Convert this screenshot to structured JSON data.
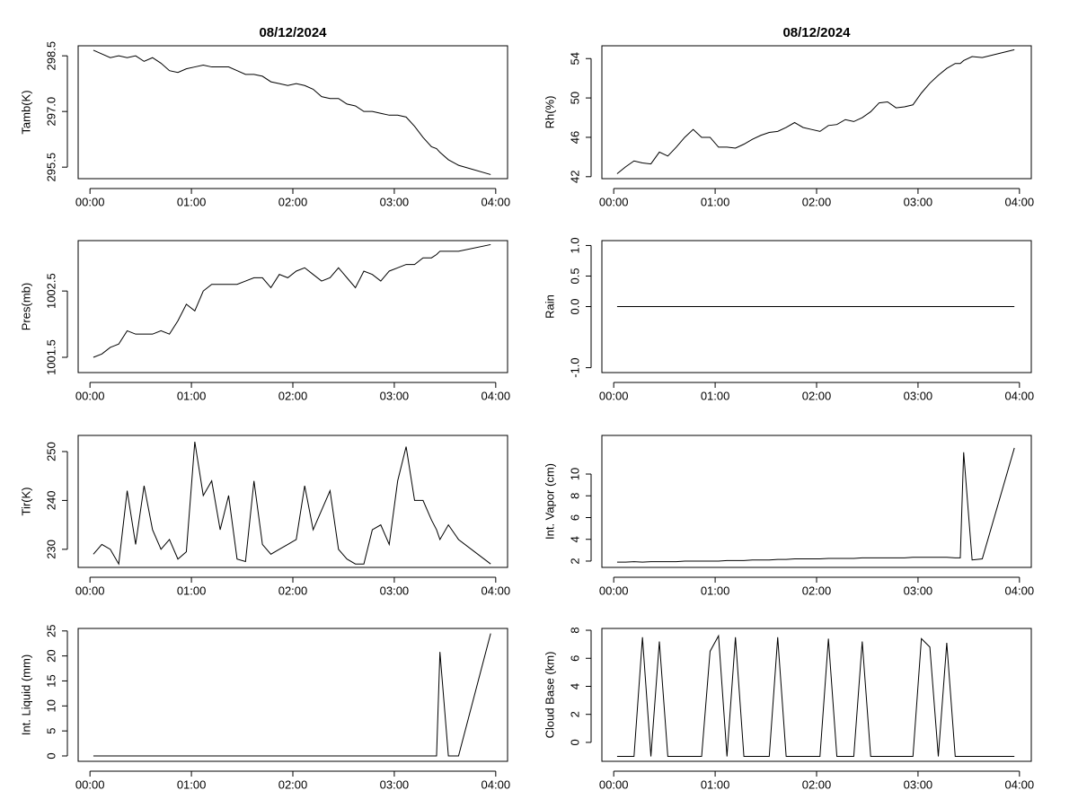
{
  "chart_data": [
    {
      "type": "line",
      "title": "08/12/2024",
      "y_label": "Tamb(K)",
      "color": "#000000",
      "x": [
        2,
        7,
        12,
        17,
        22,
        27,
        32,
        37,
        42,
        47,
        52,
        57,
        62,
        67,
        72,
        77,
        82,
        87,
        92,
        97,
        102,
        107,
        112,
        117,
        122,
        127,
        132,
        137,
        142,
        147,
        152,
        157,
        162,
        167,
        172,
        177,
        182,
        187,
        192,
        197,
        202,
        205,
        207,
        212,
        218,
        237
      ],
      "values": [
        298.65,
        298.55,
        298.45,
        298.5,
        298.45,
        298.5,
        298.35,
        298.45,
        298.3,
        298.1,
        298.05,
        298.15,
        298.2,
        298.25,
        298.2,
        298.2,
        298.2,
        298.1,
        298.0,
        298.0,
        297.95,
        297.8,
        297.75,
        297.7,
        297.75,
        297.7,
        297.6,
        297.4,
        297.35,
        297.35,
        297.2,
        297.15,
        297.0,
        297.0,
        296.95,
        296.9,
        296.9,
        296.85,
        296.6,
        296.3,
        296.05,
        296.0,
        295.9,
        295.7,
        295.55,
        295.3
      ],
      "xlim": [
        -7,
        247
      ],
      "ylim": [
        295.19,
        298.77
      ],
      "xticks": [
        {
          "value": 0,
          "label": "00:00"
        },
        {
          "value": 60,
          "label": "01:00"
        },
        {
          "value": 120,
          "label": "02:00"
        },
        {
          "value": 180,
          "label": "03:00"
        },
        {
          "value": 240,
          "label": "04:00"
        }
      ],
      "yticks": [
        295.5,
        {
          "value": 297,
          "label": "297.0"
        },
        298.5
      ]
    },
    {
      "type": "line",
      "title": "08/12/2024",
      "y_label": "Rh(%)",
      "color": "#000000",
      "x": [
        2,
        7,
        12,
        17,
        22,
        27,
        32,
        37,
        42,
        47,
        52,
        57,
        62,
        67,
        72,
        77,
        82,
        87,
        92,
        97,
        102,
        107,
        112,
        117,
        122,
        127,
        132,
        137,
        142,
        147,
        152,
        157,
        162,
        167,
        172,
        177,
        182,
        187,
        192,
        197,
        202,
        205,
        207,
        212,
        218,
        237
      ],
      "values": [
        42.3,
        43.0,
        43.6,
        43.4,
        43.3,
        44.5,
        44.1,
        45.0,
        46.0,
        46.8,
        46.0,
        46.0,
        45.0,
        45.0,
        44.9,
        45.3,
        45.8,
        46.2,
        46.5,
        46.6,
        47.0,
        47.5,
        47.0,
        46.8,
        46.6,
        47.2,
        47.3,
        47.8,
        47.6,
        48.0,
        48.6,
        49.5,
        49.6,
        49.0,
        49.1,
        49.3,
        50.5,
        51.5,
        52.3,
        53.0,
        53.5,
        53.5,
        53.8,
        54.2,
        54.1,
        54.9
      ],
      "xlim": [
        -7,
        247
      ],
      "ylim": [
        41.8,
        55.3
      ],
      "xticks": [
        {
          "value": 0,
          "label": "00:00"
        },
        {
          "value": 60,
          "label": "01:00"
        },
        {
          "value": 120,
          "label": "02:00"
        },
        {
          "value": 180,
          "label": "03:00"
        },
        {
          "value": 240,
          "label": "04:00"
        }
      ],
      "yticks": [
        42,
        46,
        50,
        54
      ]
    },
    {
      "type": "line",
      "y_label": "Pres(mb)",
      "color": "#000000",
      "x": [
        2,
        7,
        12,
        17,
        22,
        27,
        32,
        37,
        42,
        47,
        52,
        57,
        62,
        67,
        72,
        77,
        82,
        87,
        92,
        97,
        102,
        107,
        112,
        117,
        122,
        127,
        132,
        137,
        142,
        147,
        152,
        157,
        162,
        167,
        172,
        177,
        182,
        187,
        192,
        197,
        202,
        205,
        207,
        212,
        218,
        237
      ],
      "values": [
        1001.5,
        1001.55,
        1001.65,
        1001.7,
        1001.9,
        1001.85,
        1001.85,
        1001.85,
        1001.9,
        1001.85,
        1002.05,
        1002.3,
        1002.2,
        1002.5,
        1002.6,
        1002.6,
        1002.6,
        1002.6,
        1002.65,
        1002.7,
        1002.7,
        1002.55,
        1002.75,
        1002.7,
        1002.8,
        1002.85,
        1002.75,
        1002.65,
        1002.7,
        1002.85,
        1002.7,
        1002.55,
        1002.8,
        1002.75,
        1002.65,
        1002.8,
        1002.85,
        1002.9,
        1002.9,
        1003.0,
        1003.0,
        1003.05,
        1003.1,
        1003.1,
        1003.1,
        1003.2
      ],
      "xlim": [
        -7,
        247
      ],
      "ylim": [
        1001.27,
        1003.26
      ],
      "xticks": [
        {
          "value": 0,
          "label": "00:00"
        },
        {
          "value": 60,
          "label": "01:00"
        },
        {
          "value": 120,
          "label": "02:00"
        },
        {
          "value": 180,
          "label": "03:00"
        },
        {
          "value": 240,
          "label": "04:00"
        }
      ],
      "yticks": [
        1001.5,
        1002.5
      ]
    },
    {
      "type": "line",
      "y_label": "Rain",
      "color": "#000000",
      "x": [
        2,
        7,
        12,
        17,
        22,
        27,
        32,
        37,
        42,
        47,
        52,
        57,
        62,
        67,
        72,
        77,
        82,
        87,
        92,
        97,
        102,
        107,
        112,
        117,
        122,
        127,
        132,
        137,
        142,
        147,
        152,
        157,
        162,
        167,
        172,
        177,
        182,
        187,
        192,
        197,
        202,
        205,
        207,
        212,
        218,
        237
      ],
      "values": [
        0,
        0,
        0,
        0,
        0,
        0,
        0,
        0,
        0,
        0,
        0,
        0,
        0,
        0,
        0,
        0,
        0,
        0,
        0,
        0,
        0,
        0,
        0,
        0,
        0,
        0,
        0,
        0,
        0,
        0,
        0,
        0,
        0,
        0,
        0,
        0,
        0,
        0,
        0,
        0,
        0,
        0,
        0,
        0,
        0,
        0
      ],
      "xlim": [
        -7,
        247
      ],
      "ylim": [
        -1.08,
        1.08
      ],
      "xticks": [
        {
          "value": 0,
          "label": "00:00"
        },
        {
          "value": 60,
          "label": "01:00"
        },
        {
          "value": 120,
          "label": "02:00"
        },
        {
          "value": 180,
          "label": "03:00"
        },
        {
          "value": 240,
          "label": "04:00"
        }
      ],
      "yticks": [
        {
          "value": -1,
          "label": "-1.0"
        },
        {
          "value": 0,
          "label": "0.0"
        },
        0.5,
        {
          "value": 1,
          "label": "1.0"
        }
      ]
    },
    {
      "type": "line",
      "y_label": "Tir(K)",
      "color": "#000000",
      "x": [
        2,
        7,
        12,
        17,
        22,
        27,
        32,
        37,
        42,
        47,
        52,
        57,
        62,
        67,
        72,
        77,
        82,
        87,
        92,
        97,
        102,
        107,
        112,
        117,
        122,
        127,
        132,
        137,
        142,
        147,
        152,
        157,
        162,
        167,
        172,
        177,
        182,
        187,
        192,
        197,
        202,
        205,
        207,
        212,
        218,
        237
      ],
      "values": [
        229,
        231,
        230,
        227,
        242,
        231,
        243,
        234,
        230,
        232,
        228,
        229.5,
        252,
        241,
        244,
        234,
        241,
        228,
        227.5,
        244,
        231,
        229,
        230,
        231,
        232,
        243,
        234,
        238,
        242,
        230,
        228,
        227,
        227,
        234,
        235,
        231,
        244,
        251,
        240,
        240,
        236,
        234,
        232,
        235,
        232,
        227
      ],
      "xlim": [
        -7,
        247
      ],
      "ylim": [
        226.3,
        253.3
      ],
      "xticks": [
        {
          "value": 0,
          "label": "00:00"
        },
        {
          "value": 60,
          "label": "01:00"
        },
        {
          "value": 120,
          "label": "02:00"
        },
        {
          "value": 180,
          "label": "03:00"
        },
        {
          "value": 240,
          "label": "04:00"
        }
      ],
      "yticks": [
        230,
        240,
        250
      ]
    },
    {
      "type": "line",
      "y_label": "Int. Vapor (cm)",
      "color": "#000000",
      "x": [
        2,
        7,
        12,
        17,
        22,
        27,
        32,
        37,
        42,
        47,
        52,
        57,
        62,
        67,
        72,
        77,
        82,
        87,
        92,
        97,
        102,
        107,
        112,
        117,
        122,
        127,
        132,
        137,
        142,
        147,
        152,
        157,
        162,
        167,
        172,
        177,
        182,
        187,
        192,
        197,
        202,
        205,
        207,
        212,
        218,
        237
      ],
      "values": [
        1.9,
        1.9,
        1.95,
        1.9,
        1.95,
        1.95,
        1.95,
        1.95,
        2.0,
        2.0,
        2.0,
        2.0,
        2.0,
        2.05,
        2.05,
        2.05,
        2.1,
        2.1,
        2.1,
        2.15,
        2.15,
        2.2,
        2.2,
        2.2,
        2.2,
        2.25,
        2.25,
        2.25,
        2.25,
        2.3,
        2.3,
        2.3,
        2.3,
        2.3,
        2.3,
        2.35,
        2.35,
        2.35,
        2.35,
        2.35,
        2.3,
        2.3,
        12.0,
        2.1,
        2.2,
        12.4
      ],
      "xlim": [
        -7,
        247
      ],
      "ylim": [
        1.42,
        13.55
      ],
      "xticks": [
        {
          "value": 0,
          "label": "00:00"
        },
        {
          "value": 60,
          "label": "01:00"
        },
        {
          "value": 120,
          "label": "02:00"
        },
        {
          "value": 180,
          "label": "03:00"
        },
        {
          "value": 240,
          "label": "04:00"
        }
      ],
      "yticks": [
        2,
        4,
        6,
        8,
        10
      ]
    },
    {
      "type": "line",
      "y_label": "Int. Liquid (mm)",
      "color": "#000000",
      "x": [
        2,
        7,
        12,
        17,
        22,
        27,
        32,
        37,
        42,
        47,
        52,
        57,
        62,
        67,
        72,
        77,
        82,
        87,
        92,
        97,
        102,
        107,
        112,
        117,
        122,
        127,
        132,
        137,
        142,
        147,
        152,
        157,
        162,
        167,
        172,
        177,
        182,
        187,
        192,
        197,
        202,
        205,
        207,
        212,
        218,
        237
      ],
      "values": [
        0,
        0,
        0,
        0,
        0,
        0,
        0,
        0,
        0,
        0,
        0,
        0,
        0,
        0,
        0,
        0,
        0,
        0,
        0,
        0,
        0,
        0,
        0,
        0,
        0,
        0,
        0,
        0,
        0,
        0,
        0,
        0,
        0,
        0,
        0,
        0,
        0,
        0,
        0,
        0,
        0,
        0,
        20.8,
        0,
        0,
        24.5
      ],
      "xlim": [
        -7,
        247
      ],
      "ylim": [
        -1.08,
        25.5
      ],
      "xticks": [
        {
          "value": 0,
          "label": "00:00"
        },
        {
          "value": 60,
          "label": "01:00"
        },
        {
          "value": 120,
          "label": "02:00"
        },
        {
          "value": 180,
          "label": "03:00"
        },
        {
          "value": 240,
          "label": "04:00"
        }
      ],
      "yticks": [
        0,
        5,
        10,
        15,
        20,
        25
      ]
    },
    {
      "type": "line",
      "y_label": "Cloud Base (km)",
      "color": "#000000",
      "x": [
        2,
        7,
        12,
        17,
        22,
        27,
        32,
        37,
        42,
        47,
        52,
        57,
        62,
        67,
        72,
        77,
        82,
        87,
        92,
        97,
        102,
        107,
        112,
        117,
        122,
        127,
        132,
        137,
        142,
        147,
        152,
        157,
        162,
        167,
        172,
        177,
        182,
        187,
        192,
        197,
        202,
        205,
        207,
        212,
        218,
        237
      ],
      "values": [
        -1,
        -1,
        -1,
        7.5,
        -1,
        7.2,
        -1,
        -1,
        -1,
        -1,
        -1,
        6.5,
        7.6,
        -1,
        7.5,
        -1,
        -1,
        -1,
        -1,
        7.5,
        -1,
        -1,
        -1,
        -1,
        -1,
        7.4,
        -1,
        -1,
        -1,
        7.2,
        -1,
        -1,
        -1,
        -1,
        -1,
        -1,
        7.4,
        6.8,
        -1,
        7.1,
        -1,
        -1,
        -1,
        -1,
        -1,
        -1
      ],
      "xlim": [
        -7,
        247
      ],
      "ylim": [
        -1.35,
        8.13
      ],
      "xticks": [
        {
          "value": 0,
          "label": "00:00"
        },
        {
          "value": 60,
          "label": "01:00"
        },
        {
          "value": 120,
          "label": "02:00"
        },
        {
          "value": 180,
          "label": "03:00"
        },
        {
          "value": 240,
          "label": "04:00"
        }
      ],
      "yticks": [
        0,
        2,
        4,
        6,
        8
      ]
    }
  ]
}
